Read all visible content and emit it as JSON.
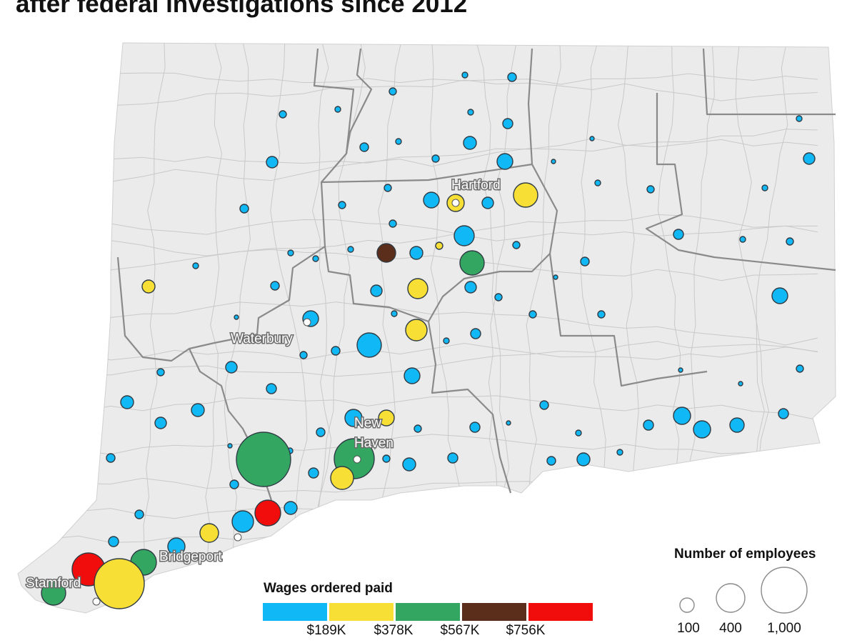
{
  "title": "after federal investigations since 2012",
  "colors": {
    "land": "#ebebeb",
    "town_border": "#c9c9c9",
    "county_border": "#8a8a8a",
    "tier1": "#10b9f5",
    "tier2": "#f7df36",
    "tier3": "#33a661",
    "tier4": "#5b2e1b",
    "tier5": "#f20d0d"
  },
  "cities": [
    {
      "name": "Hartford"
    },
    {
      "name": "Waterbury"
    },
    {
      "name": "New"
    },
    {
      "name": "Haven"
    },
    {
      "name": "Bridgeport"
    },
    {
      "name": "Stamford"
    }
  ],
  "legend": {
    "wages_title": "Wages ordered paid",
    "wage_ticks": [
      "$189K",
      "$378K",
      "$567K",
      "$756K"
    ],
    "size_title": "Number of employees",
    "size_labels": [
      "100",
      "400",
      "1,000"
    ]
  }
}
